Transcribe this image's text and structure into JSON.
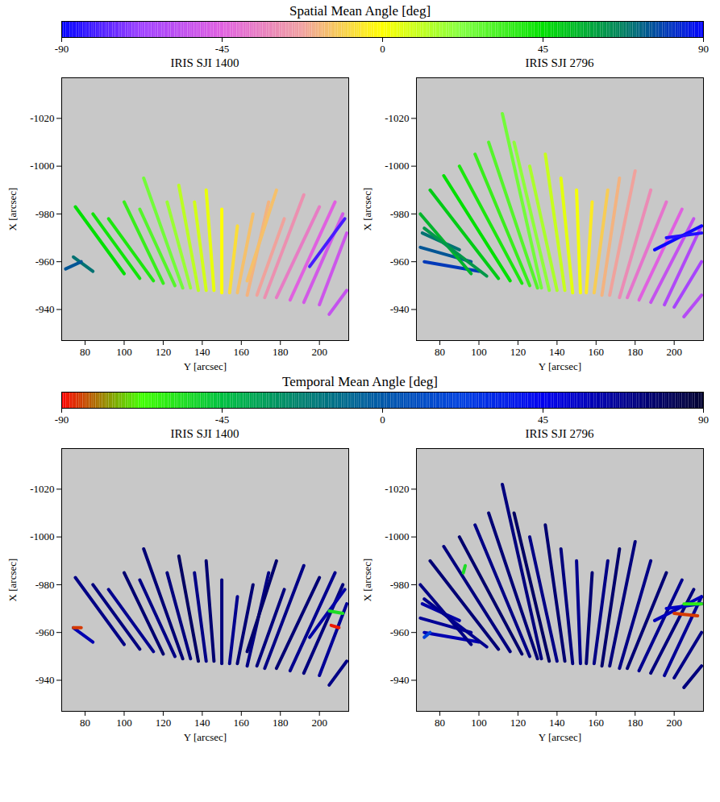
{
  "chart_data": [
    {
      "type": "segments_map",
      "colorbar": {
        "title": "Spatial Mean Angle [deg]",
        "range": [
          -90,
          90
        ],
        "ticks": [
          -90,
          -45,
          0,
          45,
          90
        ],
        "colors": [
          "#0000ff",
          "#a040ff",
          "#e060e0",
          "#f0a0a0",
          "#ffff00",
          "#80ff40",
          "#00e000",
          "#008060",
          "#0000ff"
        ]
      },
      "panels": [
        {
          "title": "IRIS SJI 1400",
          "x_label": "Y [arcsec]",
          "y_label": "X [arcsec]",
          "xlim": [
            68,
            215
          ],
          "ylim": [
            -927,
            -1037
          ],
          "xticks": [
            80,
            100,
            120,
            140,
            160,
            180,
            200
          ],
          "yticks": [
            -940,
            -960,
            -980,
            -1000,
            -1020
          ],
          "segments": [
            [
              84,
              -956,
              74,
              -962,
              70
            ],
            [
              70,
              -957,
              78,
              -960,
              75
            ],
            [
              100,
              -955,
              75,
              -983,
              45
            ],
            [
              108,
              -953,
              84,
              -980,
              42
            ],
            [
              115,
              -952,
              92,
              -978,
              40
            ],
            [
              120,
              -951,
              100,
              -985,
              35
            ],
            [
              126,
              -950,
              108,
              -982,
              30
            ],
            [
              130,
              -949,
              110,
              -995,
              25
            ],
            [
              134,
              -949,
              122,
              -985,
              18
            ],
            [
              138,
              -948,
              128,
              -992,
              12
            ],
            [
              142,
              -948,
              136,
              -985,
              8
            ],
            [
              146,
              -948,
              142,
              -990,
              4
            ],
            [
              150,
              -947,
              150,
              -982,
              0
            ],
            [
              154,
              -947,
              158,
              -975,
              -8
            ],
            [
              158,
              -947,
              166,
              -980,
              -15
            ],
            [
              163,
              -946,
              174,
              -985,
              -18
            ],
            [
              163,
              -952,
              178,
              -990,
              -15
            ],
            [
              168,
              -946,
              182,
              -978,
              -22
            ],
            [
              172,
              -945,
              192,
              -988,
              -28
            ],
            [
              178,
              -945,
              200,
              -983,
              -35
            ],
            [
              185,
              -944,
              208,
              -985,
              -45
            ],
            [
              192,
              -943,
              212,
              -980,
              -50
            ],
            [
              200,
              -942,
              214,
              -972,
              -52
            ],
            [
              205,
              -938,
              214,
              -948,
              -55
            ],
            [
              195,
              -958,
              213,
              -978,
              -80
            ]
          ]
        },
        {
          "title": "IRIS SJI 2796",
          "x_label": "Y [arcsec]",
          "y_label": "X [arcsec]",
          "xlim": [
            68,
            215
          ],
          "ylim": [
            -927,
            -1037
          ],
          "xticks": [
            80,
            100,
            120,
            140,
            160,
            180,
            200
          ],
          "yticks": [
            -940,
            -960,
            -980,
            -1000,
            -1020
          ],
          "segments": [
            [
              72,
              -960,
              100,
              -956,
              80
            ],
            [
              70,
              -966,
              96,
              -960,
              75
            ],
            [
              71,
              -972,
              90,
              -965,
              70
            ],
            [
              96,
              -955,
              70,
              -980,
              55
            ],
            [
              104,
              -954,
              72,
              -974,
              62
            ],
            [
              110,
              -953,
              75,
              -990,
              50
            ],
            [
              116,
              -952,
              82,
              -996,
              45
            ],
            [
              122,
              -951,
              90,
              -1000,
              40
            ],
            [
              126,
              -950,
              98,
              -1005,
              35
            ],
            [
              130,
              -949,
              105,
              -1010,
              30
            ],
            [
              132,
              -949,
              112,
              -1022,
              25
            ],
            [
              136,
              -948,
              118,
              -1010,
              20
            ],
            [
              140,
              -948,
              126,
              -1000,
              15
            ],
            [
              144,
              -948,
              134,
              -1005,
              10
            ],
            [
              148,
              -947,
              142,
              -995,
              5
            ],
            [
              152,
              -947,
              150,
              -990,
              2
            ],
            [
              155,
              -947,
              158,
              -985,
              -5
            ],
            [
              159,
              -947,
              166,
              -990,
              -12
            ],
            [
              163,
              -946,
              172,
              -995,
              -18
            ],
            [
              167,
              -946,
              180,
              -998,
              -22
            ],
            [
              172,
              -945,
              188,
              -990,
              -30
            ],
            [
              176,
              -945,
              196,
              -985,
              -38
            ],
            [
              182,
              -944,
              204,
              -982,
              -45
            ],
            [
              188,
              -943,
              210,
              -978,
              -55
            ],
            [
              195,
              -942,
              214,
              -975,
              -62
            ],
            [
              200,
              -941,
              214,
              -960,
              -65
            ],
            [
              205,
              -937,
              214,
              -946,
              -60
            ],
            [
              190,
              -965,
              214,
              -975,
              -88
            ],
            [
              196,
              -970,
              214,
              -972,
              -85
            ]
          ]
        }
      ]
    },
    {
      "type": "segments_map",
      "colorbar": {
        "title": "Temporal Mean Angle [deg]",
        "range": [
          -90,
          90
        ],
        "ticks": [
          -90,
          -45,
          0,
          45,
          90
        ],
        "colors": [
          "#ff0000",
          "#40ff00",
          "#00c040",
          "#008070",
          "#0058a8",
          "#0040e0",
          "#0000f0",
          "#000090",
          "#000030"
        ]
      },
      "panels": [
        {
          "title": "IRIS SJI 1400",
          "x_label": "Y [arcsec]",
          "y_label": "X [arcsec]",
          "xlim": [
            68,
            215
          ],
          "ylim": [
            -927,
            -1037
          ],
          "xticks": [
            80,
            100,
            120,
            140,
            160,
            180,
            200
          ],
          "yticks": [
            -940,
            -960,
            -980,
            -1000,
            -1020
          ],
          "segments": [
            [
              84,
              -956,
              74,
              -962,
              60
            ],
            [
              74,
              -962,
              78,
              -962,
              -85
            ],
            [
              100,
              -955,
              75,
              -983,
              70
            ],
            [
              108,
              -953,
              84,
              -980,
              72
            ],
            [
              115,
              -952,
              92,
              -978,
              68
            ],
            [
              120,
              -951,
              100,
              -985,
              75
            ],
            [
              126,
              -950,
              108,
              -982,
              70
            ],
            [
              130,
              -949,
              110,
              -995,
              74
            ],
            [
              134,
              -949,
              122,
              -985,
              72
            ],
            [
              138,
              -948,
              128,
              -992,
              78
            ],
            [
              142,
              -948,
              136,
              -985,
              70
            ],
            [
              146,
              -948,
              142,
              -990,
              75
            ],
            [
              150,
              -947,
              150,
              -982,
              72
            ],
            [
              154,
              -947,
              158,
              -975,
              68
            ],
            [
              158,
              -947,
              166,
              -980,
              74
            ],
            [
              163,
              -946,
              174,
              -985,
              70
            ],
            [
              163,
              -952,
              178,
              -990,
              76
            ],
            [
              168,
              -946,
              182,
              -978,
              72
            ],
            [
              172,
              -945,
              192,
              -988,
              70
            ],
            [
              178,
              -945,
              200,
              -983,
              74
            ],
            [
              185,
              -944,
              208,
              -985,
              68
            ],
            [
              192,
              -943,
              212,
              -980,
              72
            ],
            [
              200,
              -942,
              214,
              -972,
              66
            ],
            [
              205,
              -938,
              214,
              -948,
              70
            ],
            [
              195,
              -958,
              213,
              -978,
              62
            ],
            [
              206,
              -963,
              210,
              -962,
              -88
            ],
            [
              205,
              -969,
              212,
              -968,
              -55
            ]
          ]
        },
        {
          "title": "IRIS SJI 2796",
          "x_label": "Y [arcsec]",
          "y_label": "X [arcsec]",
          "xlim": [
            68,
            215
          ],
          "ylim": [
            -927,
            -1037
          ],
          "xticks": [
            80,
            100,
            120,
            140,
            160,
            180,
            200
          ],
          "yticks": [
            -940,
            -960,
            -980,
            -1000,
            -1020
          ],
          "segments": [
            [
              72,
              -960,
              100,
              -956,
              60
            ],
            [
              70,
              -966,
              96,
              -960,
              66
            ],
            [
              71,
              -972,
              90,
              -965,
              62
            ],
            [
              96,
              -955,
              70,
              -980,
              70
            ],
            [
              104,
              -954,
              72,
              -974,
              68
            ],
            [
              110,
              -953,
              75,
              -990,
              74
            ],
            [
              116,
              -952,
              82,
              -996,
              72
            ],
            [
              122,
              -951,
              90,
              -1000,
              76
            ],
            [
              126,
              -950,
              98,
              -1005,
              70
            ],
            [
              130,
              -949,
              105,
              -1010,
              74
            ],
            [
              132,
              -949,
              112,
              -1022,
              72
            ],
            [
              136,
              -948,
              118,
              -1010,
              78
            ],
            [
              140,
              -948,
              126,
              -1000,
              70
            ],
            [
              144,
              -948,
              134,
              -1005,
              75
            ],
            [
              148,
              -947,
              142,
              -995,
              72
            ],
            [
              152,
              -947,
              150,
              -990,
              68
            ],
            [
              155,
              -947,
              158,
              -985,
              74
            ],
            [
              159,
              -947,
              166,
              -990,
              70
            ],
            [
              163,
              -946,
              172,
              -995,
              76
            ],
            [
              167,
              -946,
              180,
              -998,
              72
            ],
            [
              172,
              -945,
              188,
              -990,
              70
            ],
            [
              176,
              -945,
              196,
              -985,
              74
            ],
            [
              182,
              -944,
              204,
              -982,
              68
            ],
            [
              188,
              -943,
              210,
              -978,
              72
            ],
            [
              195,
              -942,
              214,
              -975,
              66
            ],
            [
              200,
              -941,
              214,
              -960,
              70
            ],
            [
              205,
              -937,
              214,
              -946,
              72
            ],
            [
              190,
              -965,
              214,
              -975,
              58
            ],
            [
              196,
              -970,
              214,
              -972,
              55
            ],
            [
              200,
              -968,
              212,
              -967,
              -85
            ],
            [
              205,
              -972,
              214,
              -972,
              -60
            ],
            [
              92,
              -985,
              93,
              -988,
              -55
            ],
            [
              72,
              -958,
              75,
              -960,
              20
            ]
          ]
        }
      ]
    }
  ]
}
